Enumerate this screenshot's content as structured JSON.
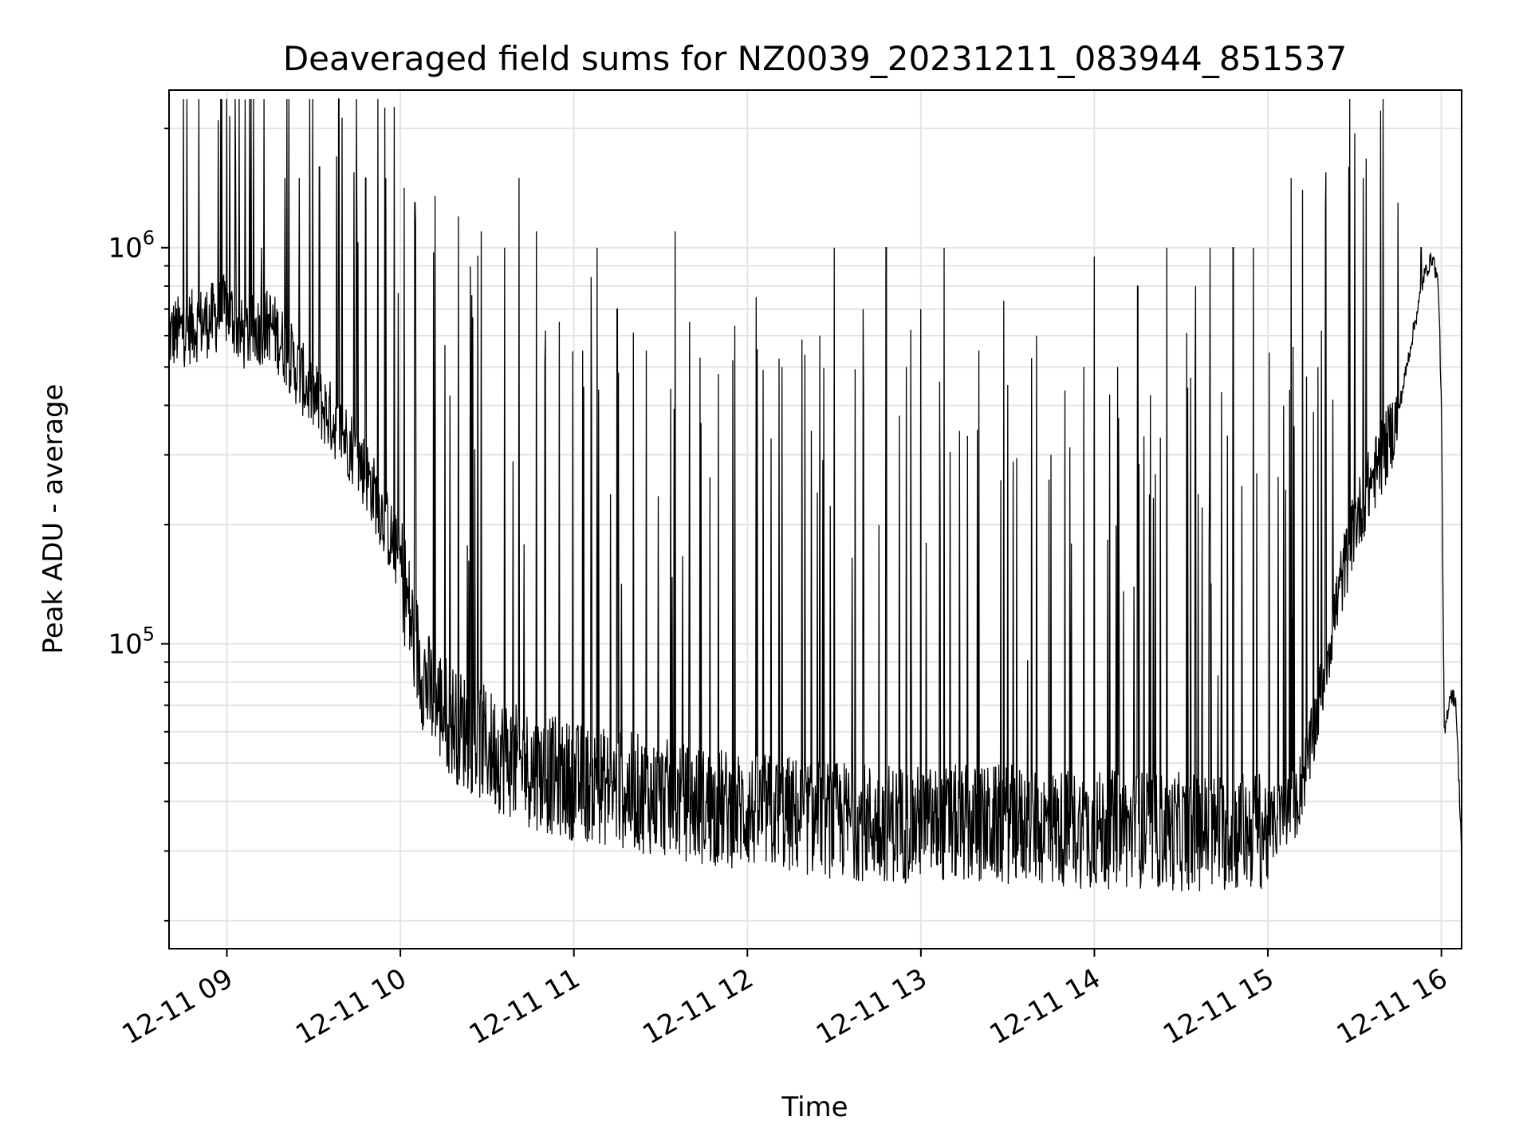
{
  "chart_data": {
    "type": "line",
    "title": "Deaveraged field sums for NZ0039_20231211_083944_851537",
    "xlabel": "Time",
    "ylabel": "Peak ADU - average",
    "yscale": "log",
    "grid": true,
    "line_color": "#000000",
    "x_range": [
      "2023-12-11 08:40",
      "2023-12-11 16:07"
    ],
    "y_range": [
      17000,
      2500000
    ],
    "x_ticks": [
      {
        "label": "12-11 09",
        "time": "2023-12-11 09:00"
      },
      {
        "label": "12-11 10",
        "time": "2023-12-11 10:00"
      },
      {
        "label": "12-11 11",
        "time": "2023-12-11 11:00"
      },
      {
        "label": "12-11 12",
        "time": "2023-12-11 12:00"
      },
      {
        "label": "12-11 13",
        "time": "2023-12-11 13:00"
      },
      {
        "label": "12-11 14",
        "time": "2023-12-11 14:00"
      },
      {
        "label": "12-11 15",
        "time": "2023-12-11 15:00"
      },
      {
        "label": "12-11 16",
        "time": "2023-12-11 16:00"
      }
    ],
    "y_ticks": [
      {
        "base": "10",
        "exp": "5",
        "value": 100000
      },
      {
        "base": "10",
        "exp": "6",
        "value": 1000000
      }
    ],
    "series": [
      {
        "x": [
          "2023-12-11 08:40",
          "2023-12-11 08:45",
          "2023-12-11 08:50",
          "2023-12-11 08:55",
          "2023-12-11 08:58",
          "2023-12-11 09:00",
          "2023-12-11 09:03",
          "2023-12-11 09:05",
          "2023-12-11 09:10",
          "2023-12-11 09:15",
          "2023-12-11 09:20",
          "2023-12-11 09:25",
          "2023-12-11 09:30",
          "2023-12-11 09:35",
          "2023-12-11 09:40",
          "2023-12-11 09:45",
          "2023-12-11 09:50",
          "2023-12-11 09:55",
          "2023-12-11 10:00",
          "2023-12-11 10:05",
          "2023-12-11 10:10",
          "2023-12-11 10:20",
          "2023-12-11 10:30",
          "2023-12-11 10:40",
          "2023-12-11 10:50",
          "2023-12-11 11:00",
          "2023-12-11 11:15",
          "2023-12-11 11:30",
          "2023-12-11 11:45",
          "2023-12-11 12:00",
          "2023-12-11 12:15",
          "2023-12-11 12:30",
          "2023-12-11 12:45",
          "2023-12-11 13:00",
          "2023-12-11 13:15",
          "2023-12-11 13:30",
          "2023-12-11 13:45",
          "2023-12-11 14:00",
          "2023-12-11 14:15",
          "2023-12-11 14:30",
          "2023-12-11 14:45",
          "2023-12-11 15:00",
          "2023-12-11 15:10",
          "2023-12-11 15:15",
          "2023-12-11 15:20",
          "2023-12-11 15:25",
          "2023-12-11 15:30",
          "2023-12-11 15:35",
          "2023-12-11 15:40",
          "2023-12-11 15:45",
          "2023-12-11 15:50",
          "2023-12-11 15:54",
          "2023-12-11 15:57",
          "2023-12-11 15:59",
          "2023-12-11 16:00",
          "2023-12-11 16:01",
          "2023-12-11 16:03",
          "2023-12-11 16:05",
          "2023-12-11 16:07"
        ],
        "y": [
          600000,
          620000,
          640000,
          660000,
          680000,
          700000,
          650000,
          600000,
          620000,
          640000,
          560000,
          480000,
          420000,
          380000,
          340000,
          300000,
          250000,
          200000,
          160000,
          100000,
          75000,
          62000,
          55000,
          50000,
          47000,
          45000,
          43000,
          41000,
          39000,
          38000,
          37000,
          36000,
          35500,
          35000,
          35000,
          35000,
          34500,
          34000,
          34000,
          33500,
          33500,
          34000,
          40000,
          55000,
          90000,
          140000,
          200000,
          250000,
          300000,
          380000,
          600000,
          850000,
          950000,
          800000,
          400000,
          58000,
          75000,
          72000,
          30000
        ],
        "spikes": [
          [
            "2023-12-11 08:57",
            2100000
          ],
          [
            "2023-12-11 09:01",
            2150000
          ],
          [
            "2023-12-11 09:03",
            1600000
          ],
          [
            "2023-12-11 09:12",
            1000000
          ],
          [
            "2023-12-11 09:20",
            1500000
          ],
          [
            "2023-12-11 09:25",
            1500000
          ],
          [
            "2023-12-11 09:32",
            1600000
          ],
          [
            "2023-12-11 09:38",
            1700000
          ],
          [
            "2023-12-11 09:44",
            1550000
          ],
          [
            "2023-12-11 09:48",
            1500000
          ],
          [
            "2023-12-11 09:55",
            1500000
          ],
          [
            "2023-12-11 10:05",
            1300000
          ],
          [
            "2023-12-11 10:12",
            1350000
          ],
          [
            "2023-12-11 10:20",
            1200000
          ],
          [
            "2023-12-11 10:28",
            1100000
          ],
          [
            "2023-12-11 10:36",
            1000000
          ],
          [
            "2023-12-11 10:41",
            1500000
          ],
          [
            "2023-12-11 10:47",
            1100000
          ],
          [
            "2023-12-11 10:55",
            650000
          ],
          [
            "2023-12-11 11:03",
            550000
          ],
          [
            "2023-12-11 11:08",
            1000000
          ],
          [
            "2023-12-11 11:15",
            700000
          ],
          [
            "2023-12-11 11:25",
            550000
          ],
          [
            "2023-12-11 11:35",
            1100000
          ],
          [
            "2023-12-11 11:40",
            650000
          ],
          [
            "2023-12-11 11:50",
            480000
          ],
          [
            "2023-12-11 11:55",
            520000
          ],
          [
            "2023-12-11 12:03",
            750000
          ],
          [
            "2023-12-11 12:12",
            500000
          ],
          [
            "2023-12-11 12:25",
            600000
          ],
          [
            "2023-12-11 12:30",
            1000000
          ],
          [
            "2023-12-11 12:40",
            700000
          ],
          [
            "2023-12-11 12:48",
            1000000
          ],
          [
            "2023-12-11 12:55",
            500000
          ],
          [
            "2023-12-11 13:00",
            700000
          ],
          [
            "2023-12-11 13:08",
            1000000
          ],
          [
            "2023-12-11 13:20",
            550000
          ],
          [
            "2023-12-11 13:30",
            450000
          ],
          [
            "2023-12-11 13:40",
            600000
          ],
          [
            "2023-12-11 13:45",
            300000
          ],
          [
            "2023-12-11 14:00",
            950000
          ],
          [
            "2023-12-11 14:08",
            500000
          ],
          [
            "2023-12-11 14:15",
            800000
          ],
          [
            "2023-12-11 14:25",
            1000000
          ],
          [
            "2023-12-11 14:35",
            800000
          ],
          [
            "2023-12-11 14:40",
            1000000
          ],
          [
            "2023-12-11 14:48",
            1000000
          ],
          [
            "2023-12-11 14:55",
            1000000
          ],
          [
            "2023-12-11 15:08",
            1500000
          ],
          [
            "2023-12-11 15:12",
            1400000
          ],
          [
            "2023-12-11 15:20",
            1550000
          ],
          [
            "2023-12-11 15:28",
            1600000
          ],
          [
            "2023-12-11 15:33",
            1500000
          ],
          [
            "2023-12-11 15:45",
            1300000
          ],
          [
            "2023-12-11 15:53",
            1000000
          ]
        ]
      }
    ]
  }
}
